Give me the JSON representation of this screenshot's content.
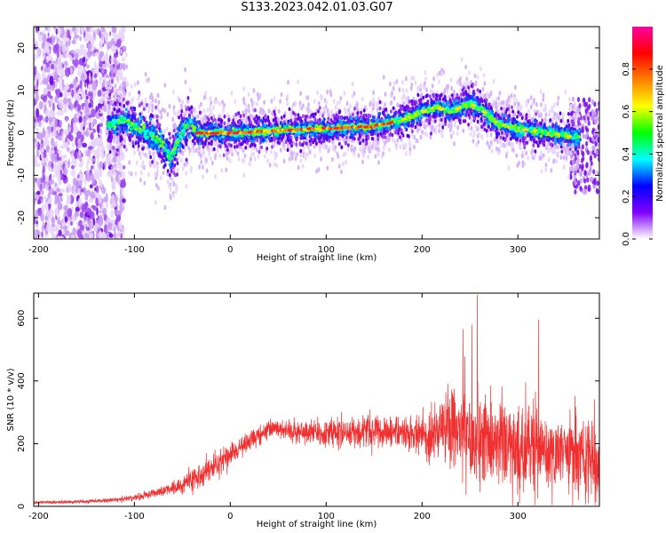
{
  "title": "S133.2023.042.01.03.G07",
  "chart_data": [
    {
      "type": "heatmap",
      "xlabel": "Height of straight line (km)",
      "ylabel": "Frequency (Hz)",
      "xlim": [
        -205,
        385
      ],
      "ylim": [
        -25,
        25
      ],
      "xticks": [
        -200,
        -100,
        0,
        100,
        200,
        300
      ],
      "yticks": [
        -20,
        -10,
        0,
        10,
        20
      ],
      "colorbar": {
        "label": "Normalized spectral amplitude",
        "range": [
          0,
          1
        ],
        "ticks": [
          "0.0",
          "0.2",
          "0.4",
          "0.6",
          "0.8"
        ],
        "colors": [
          "#ffffff",
          "#8000ff",
          "#0000ff",
          "#00ffff",
          "#00ff00",
          "#ffff00",
          "#ff8000",
          "#ff0000",
          "#ff00a0"
        ]
      },
      "ridge": {
        "x": [
          -125,
          -110,
          -95,
          -80,
          -70,
          -62,
          -55,
          -48,
          -42,
          -35,
          -25,
          0,
          50,
          100,
          150,
          180,
          200,
          215,
          230,
          250,
          265,
          280,
          300,
          330,
          360
        ],
        "y": [
          2,
          3,
          1,
          -1,
          -3,
          -6,
          -2,
          1,
          2,
          0,
          0,
          0,
          0.5,
          1,
          1.5,
          3,
          5,
          6,
          5,
          7,
          5,
          2,
          1,
          0,
          -1
        ]
      },
      "noise_region": [
        -205,
        -125
      ]
    },
    {
      "type": "line",
      "xlabel": "Height of straight line (km)",
      "ylabel": "SNR (10 * v/v)",
      "xlim": [
        -205,
        385
      ],
      "ylim": [
        0,
        680
      ],
      "xticks": [
        -200,
        -100,
        0,
        100,
        200,
        300
      ],
      "yticks": [
        0,
        200,
        400,
        600
      ],
      "series": [
        {
          "color": "#f03030",
          "envelope": {
            "x": [
              -205,
              -150,
              -120,
              -100,
              -80,
              -60,
              -40,
              -20,
              0,
              20,
              40,
              60,
              100,
              150,
              200,
              210,
              220,
              250,
              280,
              300,
              330,
              360,
              385
            ],
            "mean": [
              12,
              15,
              20,
              28,
              40,
              60,
              85,
              120,
              165,
              215,
              245,
              240,
              235,
              240,
              230,
              200,
              250,
              230,
              200,
              180,
              170,
              175,
              150
            ],
            "spread": [
              6,
              8,
              10,
              15,
              20,
              30,
              45,
              60,
              50,
              40,
              35,
              40,
              60,
              70,
              60,
              120,
              140,
              180,
              190,
              200,
              170,
              190,
              220
            ]
          }
        }
      ]
    }
  ]
}
